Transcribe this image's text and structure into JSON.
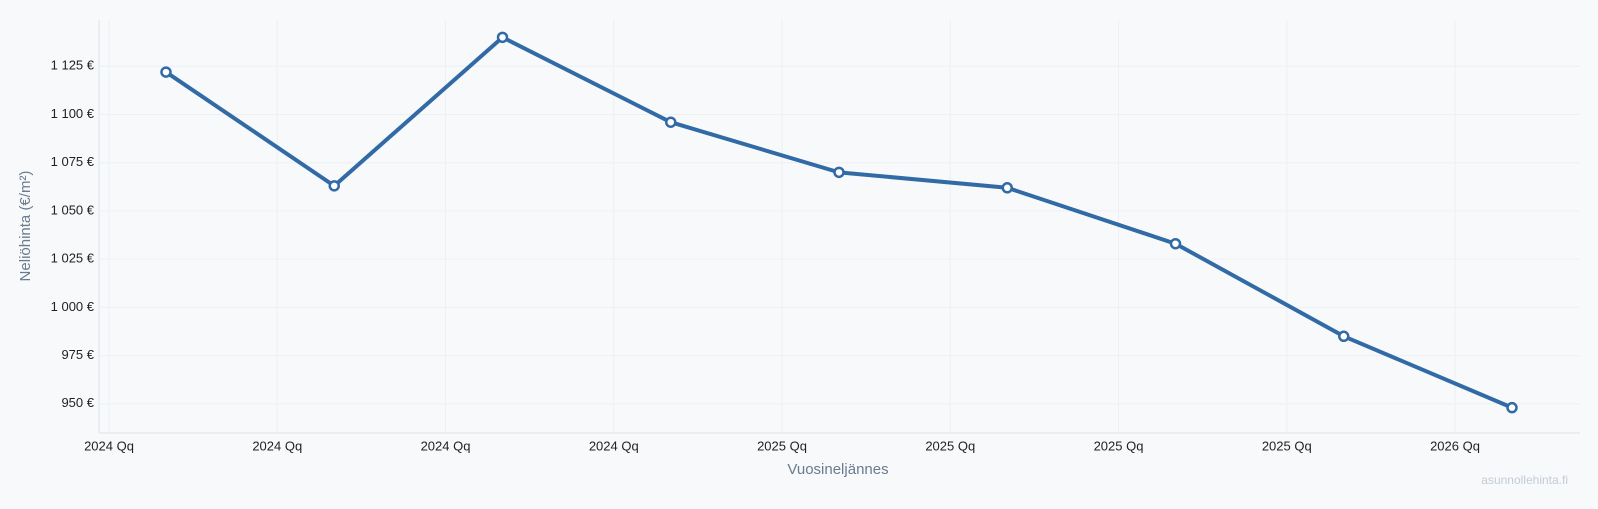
{
  "chart_data": {
    "type": "line",
    "y_label": "Neliöhinta (€/m²)",
    "x_label": "Vuosineljännes",
    "watermark": "asunnollehinta.fi",
    "categories": [
      "2024 Qq",
      "2024 Qq",
      "2024 Qq",
      "2024 Qq",
      "2025 Qq",
      "2025 Qq",
      "2025 Qq",
      "2025 Qq",
      "2026 Qq"
    ],
    "series": [
      {
        "name": "Neliöhinta",
        "color": "#326aa6",
        "values": [
          1122,
          1063,
          1140,
          1096,
          1070,
          1062,
          1033,
          985,
          948
        ]
      }
    ],
    "ylim": [
      939,
      1149
    ],
    "yticks": [
      {
        "value": 950,
        "label": "950 €"
      },
      {
        "value": 975,
        "label": "975 €"
      },
      {
        "value": 1000,
        "label": "1 000 €"
      },
      {
        "value": 1025,
        "label": "1 025 €"
      },
      {
        "value": 1050,
        "label": "1 050 €"
      },
      {
        "value": 1075,
        "label": "1 075 €"
      },
      {
        "value": 1100,
        "label": "1 100 €"
      },
      {
        "value": 1125,
        "label": "1 125 €"
      }
    ],
    "grid": true
  }
}
